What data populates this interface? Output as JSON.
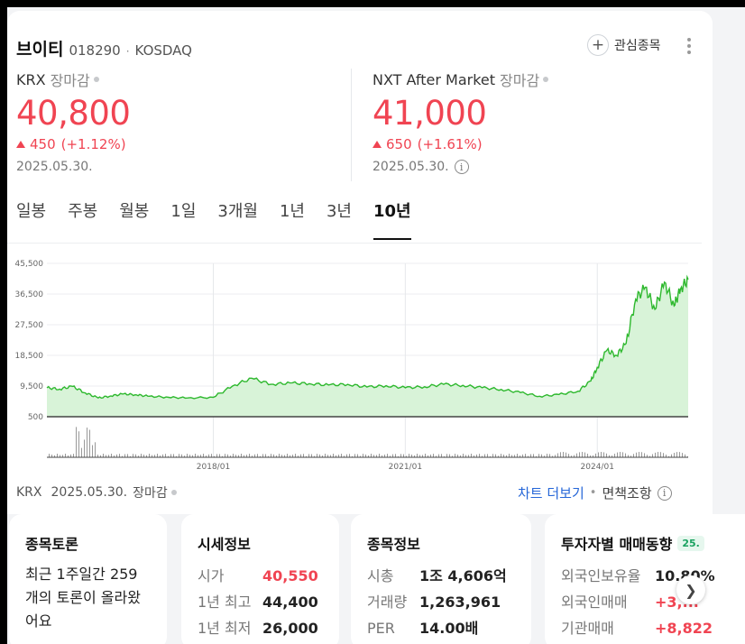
{
  "header": {
    "name": "브이티",
    "code": "018290",
    "separator": "·",
    "market": "KOSDAQ",
    "favorite_label": "관심종목"
  },
  "krx": {
    "title": "KRX",
    "status": "장마감",
    "price": "40,800",
    "change": "450",
    "change_pct": "(+1.12%)",
    "date": "2025.05.30."
  },
  "nxt": {
    "title": "NXT After Market",
    "status": "장마감",
    "price": "41,000",
    "change": "650",
    "change_pct": "(+1.61%)",
    "date": "2025.05.30."
  },
  "tabs": [
    {
      "label": "일봉",
      "active": false
    },
    {
      "label": "주봉",
      "active": false
    },
    {
      "label": "월봉",
      "active": false
    },
    {
      "label": "1일",
      "active": false
    },
    {
      "label": "3개월",
      "active": false
    },
    {
      "label": "1년",
      "active": false
    },
    {
      "label": "3년",
      "active": false
    },
    {
      "label": "10년",
      "active": true
    }
  ],
  "chart_data": {
    "type": "area",
    "y_ticks": [
      "45,500",
      "36,500",
      "27,500",
      "18,500",
      "9,500",
      "500"
    ],
    "ylim": [
      500,
      45500
    ],
    "x_ticks": [
      "2018/01",
      "2021/01",
      "2024/01"
    ],
    "line_color": "#2db82d",
    "fill_color": "#d8f3d8",
    "x": [
      2015.4,
      2015.6,
      2015.8,
      2016.0,
      2016.2,
      2016.4,
      2016.6,
      2016.8,
      2017.0,
      2017.3,
      2017.6,
      2018.0,
      2018.3,
      2018.6,
      2018.9,
      2019.2,
      2019.5,
      2019.8,
      2020.1,
      2020.4,
      2020.7,
      2021.0,
      2021.3,
      2021.6,
      2021.9,
      2022.2,
      2022.5,
      2022.8,
      2023.1,
      2023.4,
      2023.7,
      2023.9,
      2024.0,
      2024.15,
      2024.3,
      2024.45,
      2024.6,
      2024.75,
      2024.9,
      2025.05,
      2025.2,
      2025.3,
      2025.42
    ],
    "values": [
      9000,
      8600,
      9400,
      7500,
      6000,
      6600,
      7200,
      6900,
      6500,
      6200,
      6000,
      6200,
      9500,
      11800,
      10000,
      10400,
      10200,
      9800,
      10000,
      9200,
      9600,
      9000,
      9300,
      10000,
      9700,
      9000,
      8500,
      7600,
      6500,
      7000,
      8000,
      11000,
      15000,
      20000,
      18500,
      22000,
      35000,
      38500,
      32000,
      40000,
      33000,
      38000,
      40800
    ],
    "volume_note": "volume bars below price area"
  },
  "footer": {
    "market": "KRX",
    "date": "2025.05.30.",
    "status": "장마감",
    "chart_more": "차트 더보기",
    "sep": "•",
    "disclaimer": "면책조항"
  },
  "cards": {
    "discussion": {
      "title": "종목토론",
      "text": "최근 1주일간 259개의 토론이 올라왔어요"
    },
    "price_info": {
      "title": "시세정보",
      "rows": [
        {
          "key": "시가",
          "value": "40,550"
        },
        {
          "key": "1년 최고",
          "value": "44,400"
        },
        {
          "key": "1년 최저",
          "value": "26,000"
        }
      ]
    },
    "stock_info": {
      "title": "종목정보",
      "rows": [
        {
          "key": "시총",
          "value": "1조 4,606억"
        },
        {
          "key": "거래량",
          "value": "1,263,961"
        },
        {
          "key": "PER",
          "value": "14.00배"
        }
      ]
    },
    "investor": {
      "title": "투자자별 매매동향",
      "badge": "25.",
      "rows": [
        {
          "key": "외국인보유율",
          "value": "10.80%"
        },
        {
          "key": "외국인매매",
          "value": "+3,..."
        },
        {
          "key": "기관매매",
          "value": "+8,822"
        }
      ]
    }
  }
}
